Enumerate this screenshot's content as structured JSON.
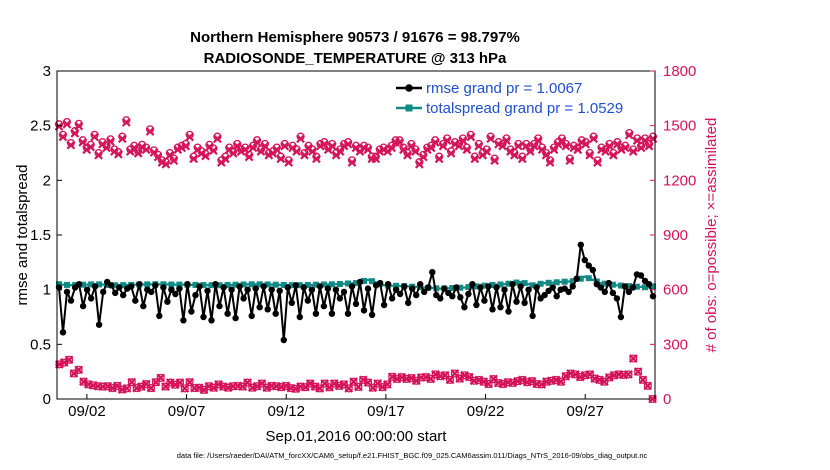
{
  "chart_data": {
    "type": "line",
    "title": "Northern Hemisphere 90573 / 91676 = 98.797%",
    "subtitle": "RADIOSONDE_TEMPERATURE @ 313 hPa",
    "xlabel": "Sep.01,2016 00:00:00 start",
    "ylabel": "rmse and totalspread",
    "y2label": "# of obs: o=possible; ×=assimilated",
    "footer": "data file: /Users/raeder/DAI/ATM_forcXX/CAM6_setup/f.e21.FHIST_BGC.f09_025.CAM6assim.011/Diags_NTrS_2016-09/obs_diag_output.nc",
    "xlim": [
      0.5,
      30.5
    ],
    "ylim": [
      0,
      3
    ],
    "y2lim": [
      0,
      1800
    ],
    "x_ticks": [
      2,
      7,
      12,
      17,
      22,
      27
    ],
    "x_tick_labels": [
      "09/02",
      "09/07",
      "09/12",
      "09/17",
      "09/22",
      "09/27"
    ],
    "y_ticks": [
      "0",
      "0.5",
      "1",
      "1.5",
      "2",
      "2.5",
      "3"
    ],
    "y2_ticks": [
      "0",
      "300",
      "600",
      "900",
      "1200",
      "1500",
      "1800"
    ],
    "colors": {
      "rmse": "#000000",
      "spread": "#0f8a84",
      "obs": "#d4145a",
      "legend_text": "#1f4fd0"
    },
    "series": [
      {
        "name": "rmse grand pr = 1.0067",
        "key": "rmse",
        "values": [
          1.02,
          0.61,
          0.98,
          0.9,
          1.02,
          1.05,
          0.85,
          1.0,
          0.92,
          1.03,
          0.68,
          0.98,
          1.07,
          1.04,
          0.97,
          1.02,
          0.95,
          1.01,
          1.03,
          0.9,
          1.05,
          0.85,
          1.0,
          0.98,
          1.04,
          0.76,
          1.02,
          0.89,
          1.0,
          0.96,
          1.01,
          0.72,
          1.05,
          0.8,
          0.95,
          1.03,
          0.75,
          0.99,
          0.72,
          1.05,
          0.85,
          1.02,
          0.78,
          1.0,
          0.74,
          1.03,
          0.92,
          1.0,
          0.76,
          1.01,
          0.84,
          1.03,
          0.82,
          1.0,
          0.78,
          0.99,
          0.54,
          1.02,
          0.88,
          1.04,
          0.75,
          1.02,
          0.9,
          1.0,
          0.78,
          1.03,
          0.85,
          1.01,
          0.78,
          1.0,
          0.92,
          0.98,
          0.78,
          1.03,
          0.87,
          1.07,
          0.81,
          1.01,
          0.77,
          1.04,
          1.06,
          0.86,
          1.05,
          0.92,
          1.0,
          0.96,
          1.03,
          0.88,
          1.01,
          0.95,
          1.05,
          0.98,
          1.02,
          1.16,
          0.95,
          0.92,
          1.01,
          0.97,
          0.94,
          1.02,
          0.93,
          0.84,
          0.96,
          1.05,
          0.86,
          1.02,
          0.9,
          1.03,
          0.82,
          1.02,
          0.84,
          1.0,
          0.8,
          1.05,
          0.89,
          1.03,
          0.88,
          1.0,
          0.76,
          1.02,
          0.92,
          0.95,
          0.99,
          1.02,
          0.94,
          1.0,
          1.01,
          0.98,
          1.03,
          1.1,
          1.41,
          1.27,
          1.22,
          1.18,
          1.05,
          1.02,
          0.98,
          1.06,
          0.97,
          0.92,
          0.75,
          1.03,
          0.98,
          1.02,
          1.14,
          1.13,
          1.08,
          1.05,
          0.94
        ]
      },
      {
        "name": "totalspread grand pr = 1.0529",
        "key": "spread"
      }
    ],
    "spread_curve": [
      [
        1,
        1.05
      ],
      [
        4,
        1.04
      ],
      [
        10,
        1.05
      ],
      [
        15,
        1.04
      ],
      [
        25,
        1.05
      ],
      [
        40,
        1.04
      ],
      [
        50,
        1.05
      ],
      [
        60,
        1.04
      ],
      [
        70,
        1.05
      ],
      [
        75,
        1.06
      ],
      [
        78,
        1.09
      ],
      [
        82,
        1.04
      ],
      [
        88,
        1.03
      ],
      [
        92,
        1.02
      ],
      [
        96,
        1.01
      ],
      [
        102,
        1.02
      ],
      [
        108,
        1.04
      ],
      [
        112,
        1.05
      ],
      [
        116,
        1.07
      ],
      [
        119,
        1.04
      ],
      [
        122,
        1.06
      ],
      [
        126,
        1.07
      ],
      [
        130,
        1.08
      ],
      [
        132,
        1.12
      ],
      [
        136,
        1.06
      ],
      [
        140,
        1.04
      ],
      [
        144,
        1.03
      ],
      [
        148,
        1.02
      ],
      [
        151,
        1.05
      ],
      [
        152,
        1.06
      ],
      [
        154,
        1.04
      ]
    ],
    "obs_possible": [
      1508,
      1450,
      1520,
      1405,
      1470,
      1510,
      1420,
      1380,
      1395,
      1450,
      1350,
      1410,
      1390,
      1425,
      1370,
      1355,
      1440,
      1530,
      1370,
      1390,
      1360,
      1395,
      1380,
      1480,
      1365,
      1340,
      1310,
      1300,
      1350,
      1320,
      1380,
      1390,
      1400,
      1450,
      1330,
      1380,
      1360,
      1345,
      1395,
      1375,
      1440,
      1310,
      1330,
      1380,
      1360,
      1400,
      1370,
      1380,
      1340,
      1390,
      1420,
      1370,
      1400,
      1350,
      1360,
      1380,
      1330,
      1400,
      1310,
      1390,
      1370,
      1440,
      1350,
      1390,
      1370,
      1330,
      1400,
      1410,
      1380,
      1400,
      1350,
      1370,
      1400,
      1410,
      1310,
      1390,
      1370,
      1390,
      1380,
      1330,
      1330,
      1370,
      1380,
      1370,
      1390,
      1420,
      1420,
      1380,
      1350,
      1400,
      1370,
      1300,
      1340,
      1380,
      1390,
      1420,
      1330,
      1400,
      1430,
      1360,
      1410,
      1400,
      1430,
      1380,
      1450,
      1330,
      1400,
      1350,
      1370,
      1440,
      1320,
      1410,
      1400,
      1430,
      1370,
      1350,
      1400,
      1330,
      1400,
      1370,
      1400,
      1430,
      1380,
      1350,
      1310,
      1380,
      1410,
      1430,
      1400,
      1320,
      1390,
      1380,
      1420,
      1410,
      1350,
      1440,
      1310,
      1380,
      1370,
      1400,
      1350,
      1410,
      1380,
      1390,
      1460,
      1370,
      1430,
      1390,
      1430,
      1400,
      1440
    ],
    "obs_assimilated": [
      190,
      200,
      215,
      140,
      160,
      95,
      80,
      75,
      70,
      68,
      70,
      60,
      72,
      52,
      58,
      92,
      60,
      68,
      82,
      60,
      92,
      116,
      68,
      90,
      78,
      90,
      58,
      92,
      60,
      62,
      50,
      70,
      62,
      80,
      68,
      62,
      70,
      72,
      68,
      90,
      62,
      70,
      85,
      62,
      72,
      70,
      65,
      72,
      60,
      56,
      68,
      65,
      85,
      68,
      58,
      85,
      64,
      85,
      72,
      80,
      58,
      95,
      66,
      105,
      90,
      62,
      85,
      65,
      80,
      122,
      110,
      120,
      110,
      115,
      100,
      118,
      120,
      110,
      135,
      125,
      130,
      105,
      140,
      112,
      130,
      120,
      100,
      105,
      95,
      82,
      110,
      88,
      82,
      92,
      88,
      98,
      105,
      92,
      98,
      82,
      80,
      95,
      100,
      105,
      95,
      125,
      140,
      135,
      120,
      130,
      135,
      112,
      105,
      95,
      118,
      130,
      135,
      132,
      135,
      222,
      150,
      105,
      72,
      0
    ]
  }
}
